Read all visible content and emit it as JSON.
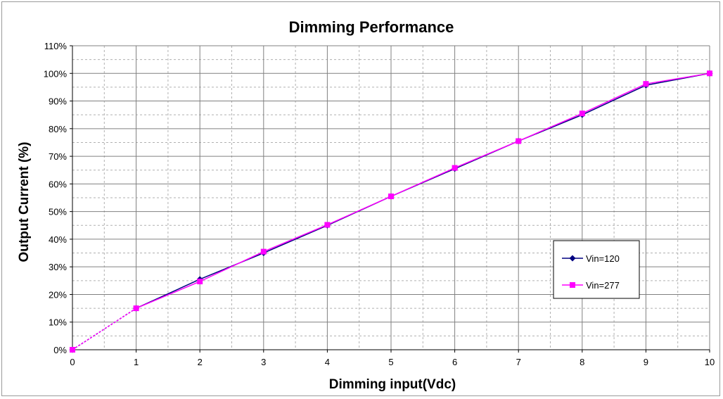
{
  "chart_data": {
    "type": "line",
    "title": "Dimming Performance",
    "xlabel": "Dimming input(Vdc)",
    "ylabel": "Output Current (%)",
    "xlim": [
      0,
      10
    ],
    "ylim": [
      0,
      110
    ],
    "x_ticks": [
      "0",
      "1",
      "2",
      "3",
      "4",
      "5",
      "6",
      "7",
      "8",
      "9",
      "10"
    ],
    "y_ticks": [
      "0%",
      "10%",
      "20%",
      "30%",
      "40%",
      "50%",
      "60%",
      "70%",
      "80%",
      "90%",
      "100%",
      "110%"
    ],
    "grid": true,
    "legend_position": "right",
    "x": [
      0,
      1,
      2,
      3,
      4,
      5,
      6,
      7,
      8,
      9,
      10
    ],
    "series": [
      {
        "name": "Vin=120",
        "color": "#000080",
        "marker": "diamond",
        "values": [
          0,
          15,
          25.5,
          35,
          45,
          55.5,
          65.5,
          75.5,
          85,
          95.7,
          100
        ]
      },
      {
        "name": "Vin=277",
        "color": "#FF00FF",
        "marker": "square",
        "values": [
          0,
          15,
          24.7,
          35.5,
          45.2,
          55.5,
          65.8,
          75.5,
          85.5,
          96.2,
          100
        ]
      }
    ],
    "dashed_first_segment": true
  }
}
